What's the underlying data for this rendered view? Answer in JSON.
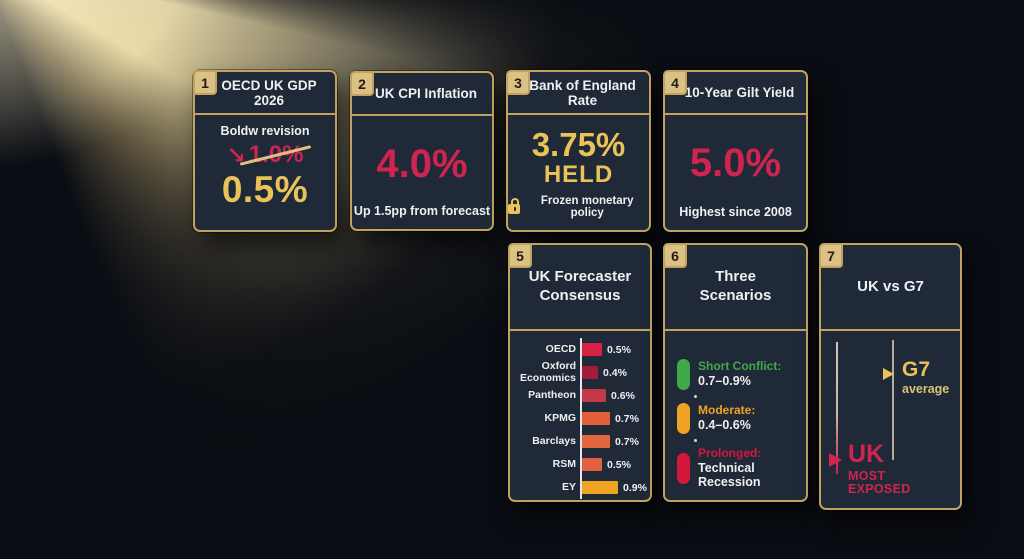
{
  "colors": {
    "background": "#0a0d13",
    "beam": "#f2e2ae",
    "card_bg": "#202937",
    "card_border": "#c3a260",
    "badge_bg": "#dcc184",
    "badge_text": "#231c0e",
    "gold_text": "#e9c258",
    "crimson": "#d02450",
    "white": "#eef0f3",
    "axis": "#e8e8ea"
  },
  "cards": [
    {
      "num": "1",
      "title": "OECD UK GDP 2026",
      "subtitle": "Boldw revision",
      "old_value": "1.0%",
      "new_value": "0.5%"
    },
    {
      "num": "2",
      "title": "UK CPI Inflation",
      "value": "4.0%",
      "footer": "Up 1.5pp from forecast"
    },
    {
      "num": "3",
      "title": "Bank of England Rate",
      "value": "3.75%",
      "status": "HELD",
      "footer": "Frozen monetary policy"
    },
    {
      "num": "4",
      "title": "10-Year Gilt Yield",
      "value": "5.0%",
      "footer": "Highest since 2008"
    },
    {
      "num": "5",
      "title": "UK Forecaster Consensus"
    },
    {
      "num": "6",
      "title": "Three Scenarios",
      "scenarios": [
        {
          "label": "Short Conflict:",
          "value": "0.7–0.9%",
          "color": "#3fa947"
        },
        {
          "label": "Moderate:",
          "value": "0.4–0.6%",
          "color": "#f0a224"
        },
        {
          "label": "Prolonged:",
          "value": "Technical Recession",
          "color": "#d6173c"
        }
      ]
    },
    {
      "num": "7",
      "title": "UK vs G7",
      "g7_label": "G7",
      "g7_sub": "average",
      "uk_label": "UK",
      "uk_sub": "MOST EXPOSED"
    }
  ],
  "chart_data": [
    {
      "type": "bar",
      "orientation": "horizontal",
      "title": "UK Forecaster Consensus",
      "categories": [
        "OECD",
        "Oxford Economics",
        "Pantheon",
        "KPMG",
        "Barclays",
        "RSM",
        "EY"
      ],
      "values": [
        0.5,
        0.4,
        0.6,
        0.7,
        0.7,
        0.5,
        0.9
      ],
      "value_labels": [
        "0.5%",
        "0.4%",
        "0.6%",
        "0.7%",
        "0.7%",
        "0.5%",
        "0.9%"
      ],
      "bar_colors": [
        "#d81f44",
        "#a01c3a",
        "#c53848",
        "#e2603a",
        "#e2663e",
        "#e06040",
        "#eda421"
      ],
      "unit": "%",
      "xlim": [
        0,
        1
      ],
      "grid": false,
      "legend": false
    },
    {
      "type": "table",
      "title": "Three Scenarios",
      "rows": [
        [
          "Short Conflict:",
          "0.7–0.9%"
        ],
        [
          "Moderate:",
          "0.4–0.6%"
        ],
        [
          "Prolonged:",
          "Technical Recession"
        ]
      ]
    },
    {
      "type": "table",
      "title": "UK vs G7",
      "rows": [
        [
          "G7",
          "average"
        ],
        [
          "UK",
          "MOST EXPOSED"
        ]
      ]
    }
  ]
}
